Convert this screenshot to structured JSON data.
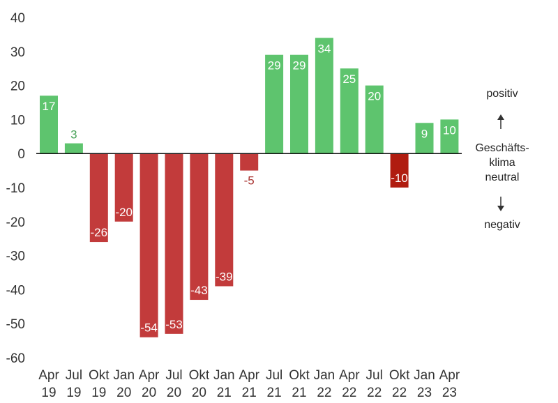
{
  "chart_data": {
    "type": "bar",
    "categories": [
      [
        "Apr",
        "19"
      ],
      [
        "Jul",
        "19"
      ],
      [
        "Okt",
        "19"
      ],
      [
        "Jan",
        "20"
      ],
      [
        "Apr",
        "20"
      ],
      [
        "Jul",
        "20"
      ],
      [
        "Okt",
        "20"
      ],
      [
        "Jan",
        "21"
      ],
      [
        "Apr",
        "21"
      ],
      [
        "Jul",
        "21"
      ],
      [
        "Okt",
        "21"
      ],
      [
        "Jan",
        "22"
      ],
      [
        "Apr",
        "22"
      ],
      [
        "Jul",
        "22"
      ],
      [
        "Okt",
        "22"
      ],
      [
        "Jan",
        "23"
      ],
      [
        "Apr",
        "23"
      ]
    ],
    "values": [
      17,
      3,
      -26,
      -20,
      -54,
      -53,
      -43,
      -39,
      -5,
      29,
      29,
      34,
      25,
      20,
      -10,
      9,
      10
    ],
    "data_labels": [
      "17",
      "3",
      "-26",
      "-20",
      "-54",
      "-53",
      "-43",
      "-39",
      "-5",
      "29",
      "29",
      "34",
      "25",
      "20",
      "-10",
      "9",
      "10"
    ],
    "ylim": [
      -60,
      40
    ],
    "yticks": [
      40,
      30,
      20,
      10,
      0,
      -10,
      -20,
      -30,
      -40,
      -50,
      -60
    ],
    "grid": false,
    "colors": {
      "positive": "#5ec46e",
      "negative": "#c23b3b",
      "highlight_negative": "#b01c10",
      "positive_outside_label": "#4aa35a",
      "negative_outside_label": "#a8322f",
      "axis": "#111111"
    },
    "highlight_index": 14,
    "annotations": {
      "positive": "positiv",
      "middle": [
        "Geschäfts-",
        "klima",
        "neutral"
      ],
      "negative": "negativ"
    }
  }
}
